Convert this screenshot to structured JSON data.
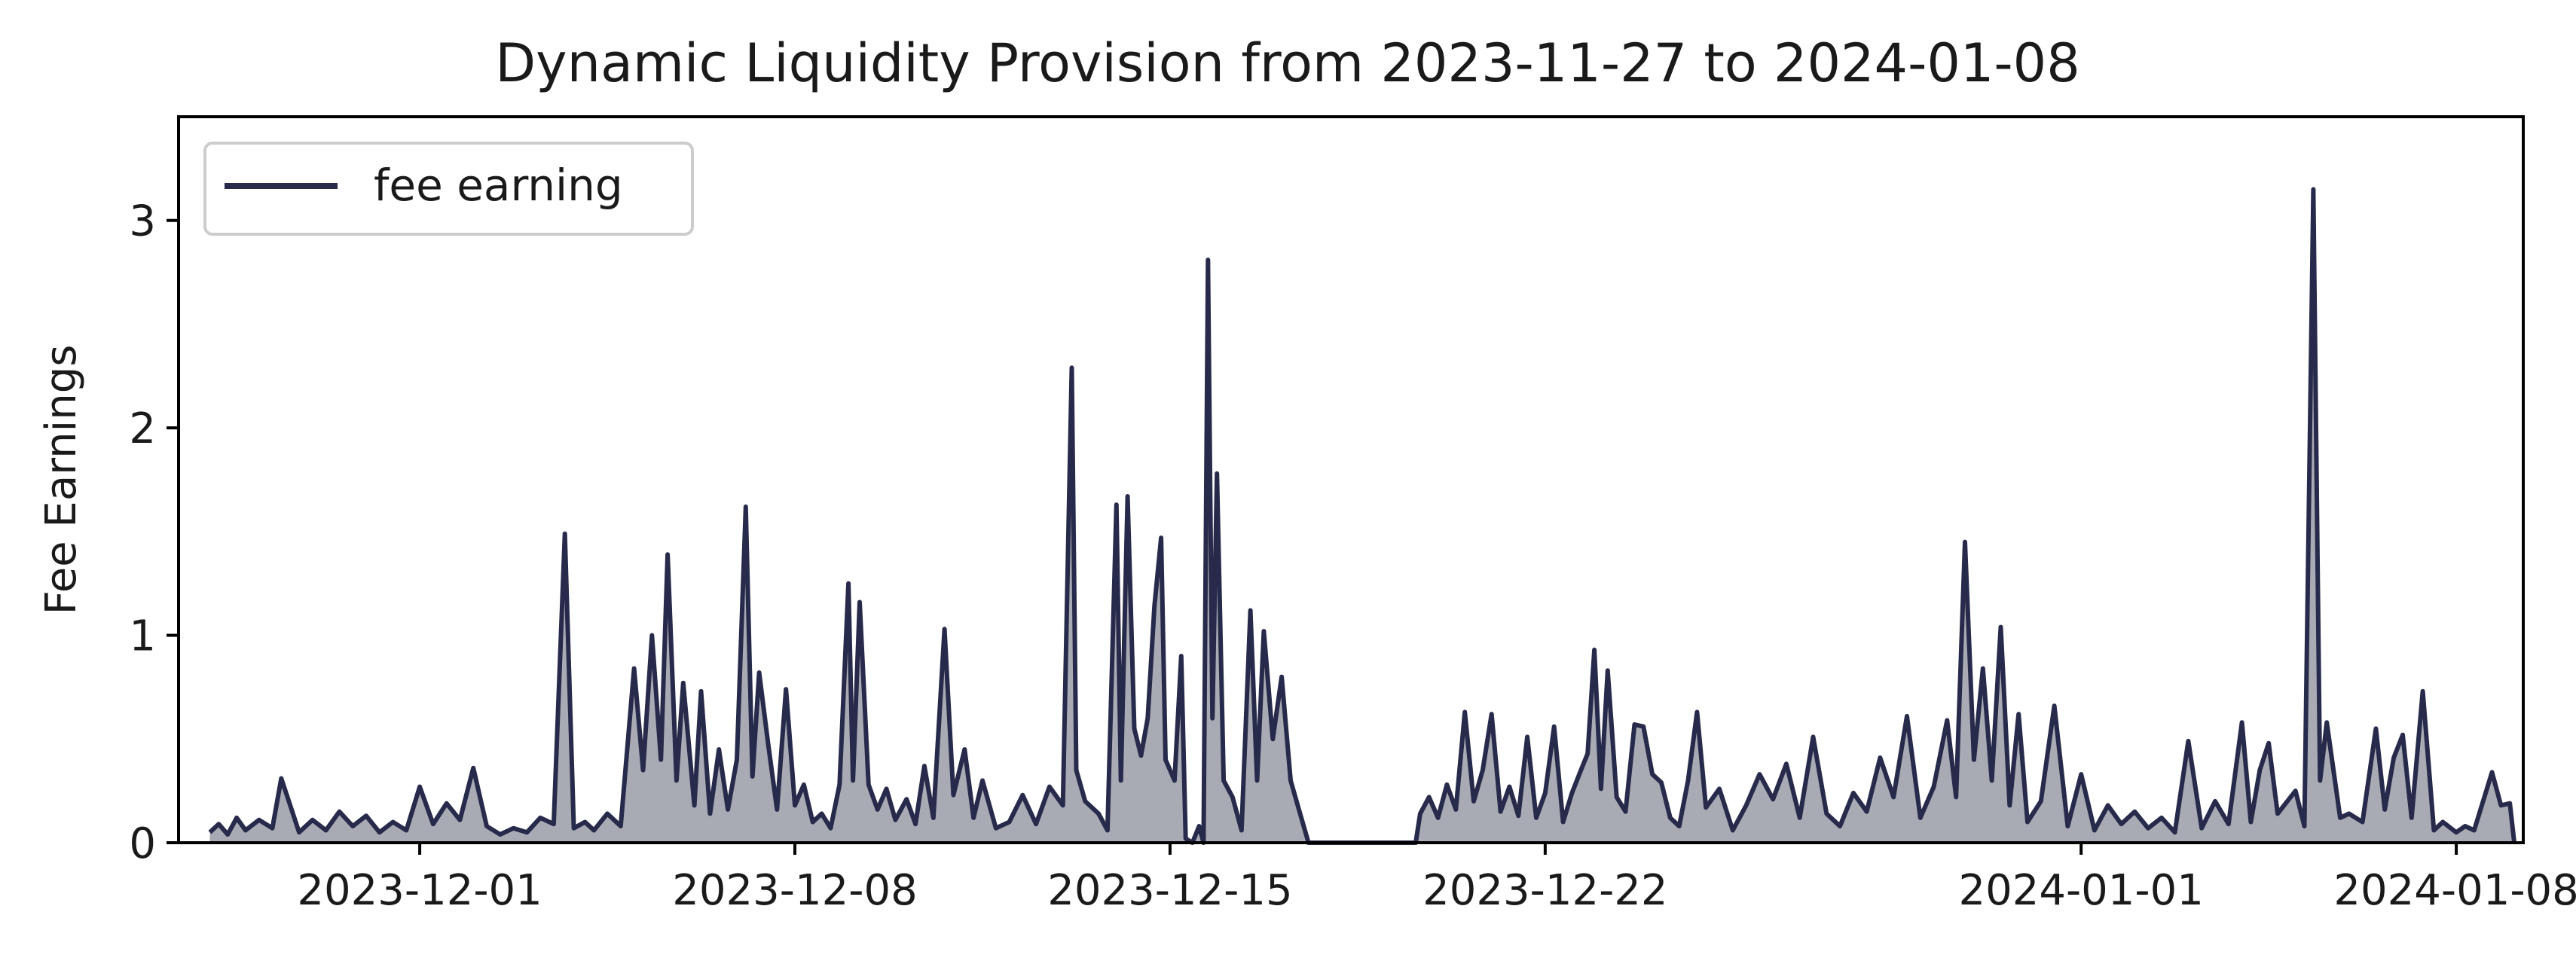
{
  "chart_data": {
    "type": "area",
    "title": "Dynamic Liquidity Provision from 2023-11-27 to 2024-01-08",
    "xlabel": "",
    "ylabel": "Fee Earnings",
    "x_type": "date",
    "xlim": [
      "2023-11-26T12:00",
      "2024-01-09T06:00"
    ],
    "ylim": [
      0,
      3.5
    ],
    "yticks": [
      0,
      1,
      2,
      3
    ],
    "xticks": [
      "2023-12-01",
      "2023-12-08",
      "2023-12-15",
      "2023-12-22",
      "2024-01-01",
      "2024-01-08"
    ],
    "grid": false,
    "legend_position": "upper-left",
    "line_color": "#272a4a",
    "fill_color": "#a8aab4",
    "series": [
      {
        "name": "fee earning",
        "points": [
          [
            "2023-11-27T02:00",
            0.05
          ],
          [
            "2023-11-27T06:00",
            0.09
          ],
          [
            "2023-11-27T10:00",
            0.04
          ],
          [
            "2023-11-27T14:00",
            0.12
          ],
          [
            "2023-11-27T18:00",
            0.06
          ],
          [
            "2023-11-28T00:00",
            0.11
          ],
          [
            "2023-11-28T06:00",
            0.07
          ],
          [
            "2023-11-28T10:00",
            0.31
          ],
          [
            "2023-11-28T14:00",
            0.18
          ],
          [
            "2023-11-28T18:00",
            0.05
          ],
          [
            "2023-11-29T00:00",
            0.11
          ],
          [
            "2023-11-29T06:00",
            0.06
          ],
          [
            "2023-11-29T12:00",
            0.15
          ],
          [
            "2023-11-29T18:00",
            0.08
          ],
          [
            "2023-11-30T00:00",
            0.13
          ],
          [
            "2023-11-30T06:00",
            0.05
          ],
          [
            "2023-11-30T12:00",
            0.1
          ],
          [
            "2023-11-30T18:00",
            0.06
          ],
          [
            "2023-12-01T00:00",
            0.27
          ],
          [
            "2023-12-01T06:00",
            0.09
          ],
          [
            "2023-12-01T12:00",
            0.19
          ],
          [
            "2023-12-01T18:00",
            0.11
          ],
          [
            "2023-12-02T00:00",
            0.36
          ],
          [
            "2023-12-02T06:00",
            0.08
          ],
          [
            "2023-12-02T12:00",
            0.04
          ],
          [
            "2023-12-02T18:00",
            0.07
          ],
          [
            "2023-12-03T00:00",
            0.05
          ],
          [
            "2023-12-03T06:00",
            0.12
          ],
          [
            "2023-12-03T12:00",
            0.09
          ],
          [
            "2023-12-03T17:00",
            1.49
          ],
          [
            "2023-12-03T21:00",
            0.07
          ],
          [
            "2023-12-04T02:00",
            0.1
          ],
          [
            "2023-12-04T06:00",
            0.06
          ],
          [
            "2023-12-04T12:00",
            0.14
          ],
          [
            "2023-12-04T18:00",
            0.08
          ],
          [
            "2023-12-05T00:00",
            0.84
          ],
          [
            "2023-12-05T04:00",
            0.35
          ],
          [
            "2023-12-05T08:00",
            1.0
          ],
          [
            "2023-12-05T12:00",
            0.4
          ],
          [
            "2023-12-05T15:00",
            1.39
          ],
          [
            "2023-12-05T19:00",
            0.3
          ],
          [
            "2023-12-05T22:00",
            0.77
          ],
          [
            "2023-12-06T03:00",
            0.18
          ],
          [
            "2023-12-06T06:00",
            0.73
          ],
          [
            "2023-12-06T10:00",
            0.14
          ],
          [
            "2023-12-06T14:00",
            0.45
          ],
          [
            "2023-12-06T18:00",
            0.16
          ],
          [
            "2023-12-06T22:00",
            0.4
          ],
          [
            "2023-12-07T02:00",
            1.62
          ],
          [
            "2023-12-07T05:00",
            0.32
          ],
          [
            "2023-12-07T08:00",
            0.82
          ],
          [
            "2023-12-07T12:00",
            0.48
          ],
          [
            "2023-12-07T16:00",
            0.16
          ],
          [
            "2023-12-07T20:00",
            0.74
          ],
          [
            "2023-12-08T00:00",
            0.18
          ],
          [
            "2023-12-08T04:00",
            0.28
          ],
          [
            "2023-12-08T08:00",
            0.1
          ],
          [
            "2023-12-08T12:00",
            0.14
          ],
          [
            "2023-12-08T16:00",
            0.07
          ],
          [
            "2023-12-08T20:00",
            0.28
          ],
          [
            "2023-12-09T00:00",
            1.25
          ],
          [
            "2023-12-09T02:00",
            0.3
          ],
          [
            "2023-12-09T05:00",
            1.16
          ],
          [
            "2023-12-09T09:00",
            0.28
          ],
          [
            "2023-12-09T13:00",
            0.16
          ],
          [
            "2023-12-09T17:00",
            0.26
          ],
          [
            "2023-12-09T21:00",
            0.11
          ],
          [
            "2023-12-10T02:00",
            0.21
          ],
          [
            "2023-12-10T06:00",
            0.09
          ],
          [
            "2023-12-10T10:00",
            0.37
          ],
          [
            "2023-12-10T14:00",
            0.12
          ],
          [
            "2023-12-10T19:00",
            1.03
          ],
          [
            "2023-12-10T23:00",
            0.23
          ],
          [
            "2023-12-11T04:00",
            0.45
          ],
          [
            "2023-12-11T08:00",
            0.12
          ],
          [
            "2023-12-11T12:00",
            0.3
          ],
          [
            "2023-12-11T18:00",
            0.07
          ],
          [
            "2023-12-12T00:00",
            0.1
          ],
          [
            "2023-12-12T06:00",
            0.23
          ],
          [
            "2023-12-12T12:00",
            0.09
          ],
          [
            "2023-12-12T18:00",
            0.27
          ],
          [
            "2023-12-13T00:00",
            0.18
          ],
          [
            "2023-12-13T04:00",
            2.29
          ],
          [
            "2023-12-13T06:00",
            0.35
          ],
          [
            "2023-12-13T10:00",
            0.2
          ],
          [
            "2023-12-13T16:00",
            0.14
          ],
          [
            "2023-12-13T20:00",
            0.06
          ],
          [
            "2023-12-14T00:00",
            1.63
          ],
          [
            "2023-12-14T02:00",
            0.3
          ],
          [
            "2023-12-14T05:00",
            1.67
          ],
          [
            "2023-12-14T08:00",
            0.55
          ],
          [
            "2023-12-14T11:00",
            0.42
          ],
          [
            "2023-12-14T14:00",
            0.6
          ],
          [
            "2023-12-14T17:00",
            1.14
          ],
          [
            "2023-12-14T20:00",
            1.47
          ],
          [
            "2023-12-14T22:00",
            0.4
          ],
          [
            "2023-12-15T02:00",
            0.3
          ],
          [
            "2023-12-15T05:00",
            0.9
          ],
          [
            "2023-12-15T07:00",
            0.02
          ],
          [
            "2023-12-15T10:00",
            0.0
          ],
          [
            "2023-12-15T13:00",
            0.08
          ],
          [
            "2023-12-15T15:00",
            0.0
          ],
          [
            "2023-12-15T17:00",
            2.81
          ],
          [
            "2023-12-15T19:00",
            0.6
          ],
          [
            "2023-12-15T21:00",
            1.78
          ],
          [
            "2023-12-16T00:00",
            0.3
          ],
          [
            "2023-12-16T04:00",
            0.22
          ],
          [
            "2023-12-16T08:00",
            0.06
          ],
          [
            "2023-12-16T12:00",
            1.12
          ],
          [
            "2023-12-16T15:00",
            0.3
          ],
          [
            "2023-12-16T18:00",
            1.02
          ],
          [
            "2023-12-16T22:00",
            0.5
          ],
          [
            "2023-12-17T02:00",
            0.8
          ],
          [
            "2023-12-17T06:00",
            0.3
          ],
          [
            "2023-12-17T10:00",
            0.15
          ],
          [
            "2023-12-17T14:00",
            0.0
          ],
          [
            "2023-12-17T18:00",
            0.0
          ],
          [
            "2023-12-18T00:00",
            0.0
          ],
          [
            "2023-12-18T12:00",
            0.0
          ],
          [
            "2023-12-19T00:00",
            0.0
          ],
          [
            "2023-12-19T12:00",
            0.0
          ],
          [
            "2023-12-19T14:00",
            0.0
          ],
          [
            "2023-12-19T16:00",
            0.14
          ],
          [
            "2023-12-19T20:00",
            0.22
          ],
          [
            "2023-12-20T00:00",
            0.12
          ],
          [
            "2023-12-20T04:00",
            0.28
          ],
          [
            "2023-12-20T08:00",
            0.16
          ],
          [
            "2023-12-20T12:00",
            0.63
          ],
          [
            "2023-12-20T16:00",
            0.2
          ],
          [
            "2023-12-20T20:00",
            0.35
          ],
          [
            "2023-12-21T00:00",
            0.62
          ],
          [
            "2023-12-21T04:00",
            0.15
          ],
          [
            "2023-12-21T08:00",
            0.27
          ],
          [
            "2023-12-21T12:00",
            0.13
          ],
          [
            "2023-12-21T16:00",
            0.51
          ],
          [
            "2023-12-21T20:00",
            0.12
          ],
          [
            "2023-12-22T00:00",
            0.24
          ],
          [
            "2023-12-22T04:00",
            0.56
          ],
          [
            "2023-12-22T08:00",
            0.1
          ],
          [
            "2023-12-22T12:00",
            0.24
          ],
          [
            "2023-12-22T16:00",
            0.35
          ],
          [
            "2023-12-22T19:00",
            0.43
          ],
          [
            "2023-12-22T22:00",
            0.93
          ],
          [
            "2023-12-23T01:00",
            0.26
          ],
          [
            "2023-12-23T04:00",
            0.83
          ],
          [
            "2023-12-23T08:00",
            0.22
          ],
          [
            "2023-12-23T12:00",
            0.15
          ],
          [
            "2023-12-23T16:00",
            0.57
          ],
          [
            "2023-12-23T20:00",
            0.56
          ],
          [
            "2023-12-24T00:00",
            0.33
          ],
          [
            "2023-12-24T04:00",
            0.29
          ],
          [
            "2023-12-24T08:00",
            0.12
          ],
          [
            "2023-12-24T12:00",
            0.08
          ],
          [
            "2023-12-24T16:00",
            0.3
          ],
          [
            "2023-12-24T20:00",
            0.63
          ],
          [
            "2023-12-25T00:00",
            0.17
          ],
          [
            "2023-12-25T06:00",
            0.26
          ],
          [
            "2023-12-25T12:00",
            0.06
          ],
          [
            "2023-12-25T18:00",
            0.18
          ],
          [
            "2023-12-26T00:00",
            0.33
          ],
          [
            "2023-12-26T06:00",
            0.21
          ],
          [
            "2023-12-26T12:00",
            0.38
          ],
          [
            "2023-12-26T18:00",
            0.12
          ],
          [
            "2023-12-27T00:00",
            0.51
          ],
          [
            "2023-12-27T06:00",
            0.14
          ],
          [
            "2023-12-27T12:00",
            0.08
          ],
          [
            "2023-12-27T18:00",
            0.24
          ],
          [
            "2023-12-28T00:00",
            0.15
          ],
          [
            "2023-12-28T06:00",
            0.41
          ],
          [
            "2023-12-28T12:00",
            0.22
          ],
          [
            "2023-12-28T18:00",
            0.61
          ],
          [
            "2023-12-29T00:00",
            0.12
          ],
          [
            "2023-12-29T06:00",
            0.27
          ],
          [
            "2023-12-29T12:00",
            0.59
          ],
          [
            "2023-12-29T16:00",
            0.22
          ],
          [
            "2023-12-29T20:00",
            1.45
          ],
          [
            "2023-12-30T00:00",
            0.4
          ],
          [
            "2023-12-30T04:00",
            0.84
          ],
          [
            "2023-12-30T08:00",
            0.3
          ],
          [
            "2023-12-30T12:00",
            1.04
          ],
          [
            "2023-12-30T16:00",
            0.18
          ],
          [
            "2023-12-30T20:00",
            0.62
          ],
          [
            "2023-12-31T00:00",
            0.1
          ],
          [
            "2023-12-31T06:00",
            0.2
          ],
          [
            "2023-12-31T12:00",
            0.66
          ],
          [
            "2023-12-31T18:00",
            0.08
          ],
          [
            "2024-01-01T00:00",
            0.33
          ],
          [
            "2024-01-01T06:00",
            0.06
          ],
          [
            "2024-01-01T12:00",
            0.18
          ],
          [
            "2024-01-01T18:00",
            0.09
          ],
          [
            "2024-01-02T00:00",
            0.15
          ],
          [
            "2024-01-02T06:00",
            0.07
          ],
          [
            "2024-01-02T12:00",
            0.12
          ],
          [
            "2024-01-02T18:00",
            0.05
          ],
          [
            "2024-01-03T00:00",
            0.49
          ],
          [
            "2024-01-03T06:00",
            0.07
          ],
          [
            "2024-01-03T12:00",
            0.2
          ],
          [
            "2024-01-03T18:00",
            0.09
          ],
          [
            "2024-01-04T00:00",
            0.58
          ],
          [
            "2024-01-04T04:00",
            0.1
          ],
          [
            "2024-01-04T08:00",
            0.35
          ],
          [
            "2024-01-04T12:00",
            0.48
          ],
          [
            "2024-01-04T16:00",
            0.14
          ],
          [
            "2024-01-05T00:00",
            0.25
          ],
          [
            "2024-01-05T04:00",
            0.08
          ],
          [
            "2024-01-05T08:00",
            3.15
          ],
          [
            "2024-01-05T11:00",
            0.3
          ],
          [
            "2024-01-05T14:00",
            0.58
          ],
          [
            "2024-01-05T20:00",
            0.12
          ],
          [
            "2024-01-06T00:00",
            0.14
          ],
          [
            "2024-01-06T06:00",
            0.1
          ],
          [
            "2024-01-06T12:00",
            0.55
          ],
          [
            "2024-01-06T16:00",
            0.16
          ],
          [
            "2024-01-06T20:00",
            0.41
          ],
          [
            "2024-01-07T00:00",
            0.52
          ],
          [
            "2024-01-07T04:00",
            0.12
          ],
          [
            "2024-01-07T09:00",
            0.73
          ],
          [
            "2024-01-07T14:00",
            0.06
          ],
          [
            "2024-01-07T18:00",
            0.1
          ],
          [
            "2024-01-08T00:00",
            0.05
          ],
          [
            "2024-01-08T04:00",
            0.08
          ],
          [
            "2024-01-08T08:00",
            0.06
          ],
          [
            "2024-01-08T12:00",
            0.2
          ],
          [
            "2024-01-08T16:00",
            0.34
          ],
          [
            "2024-01-08T20:00",
            0.18
          ],
          [
            "2024-01-09T00:00",
            0.19
          ],
          [
            "2024-01-09T02:00",
            0.0
          ]
        ]
      }
    ]
  }
}
